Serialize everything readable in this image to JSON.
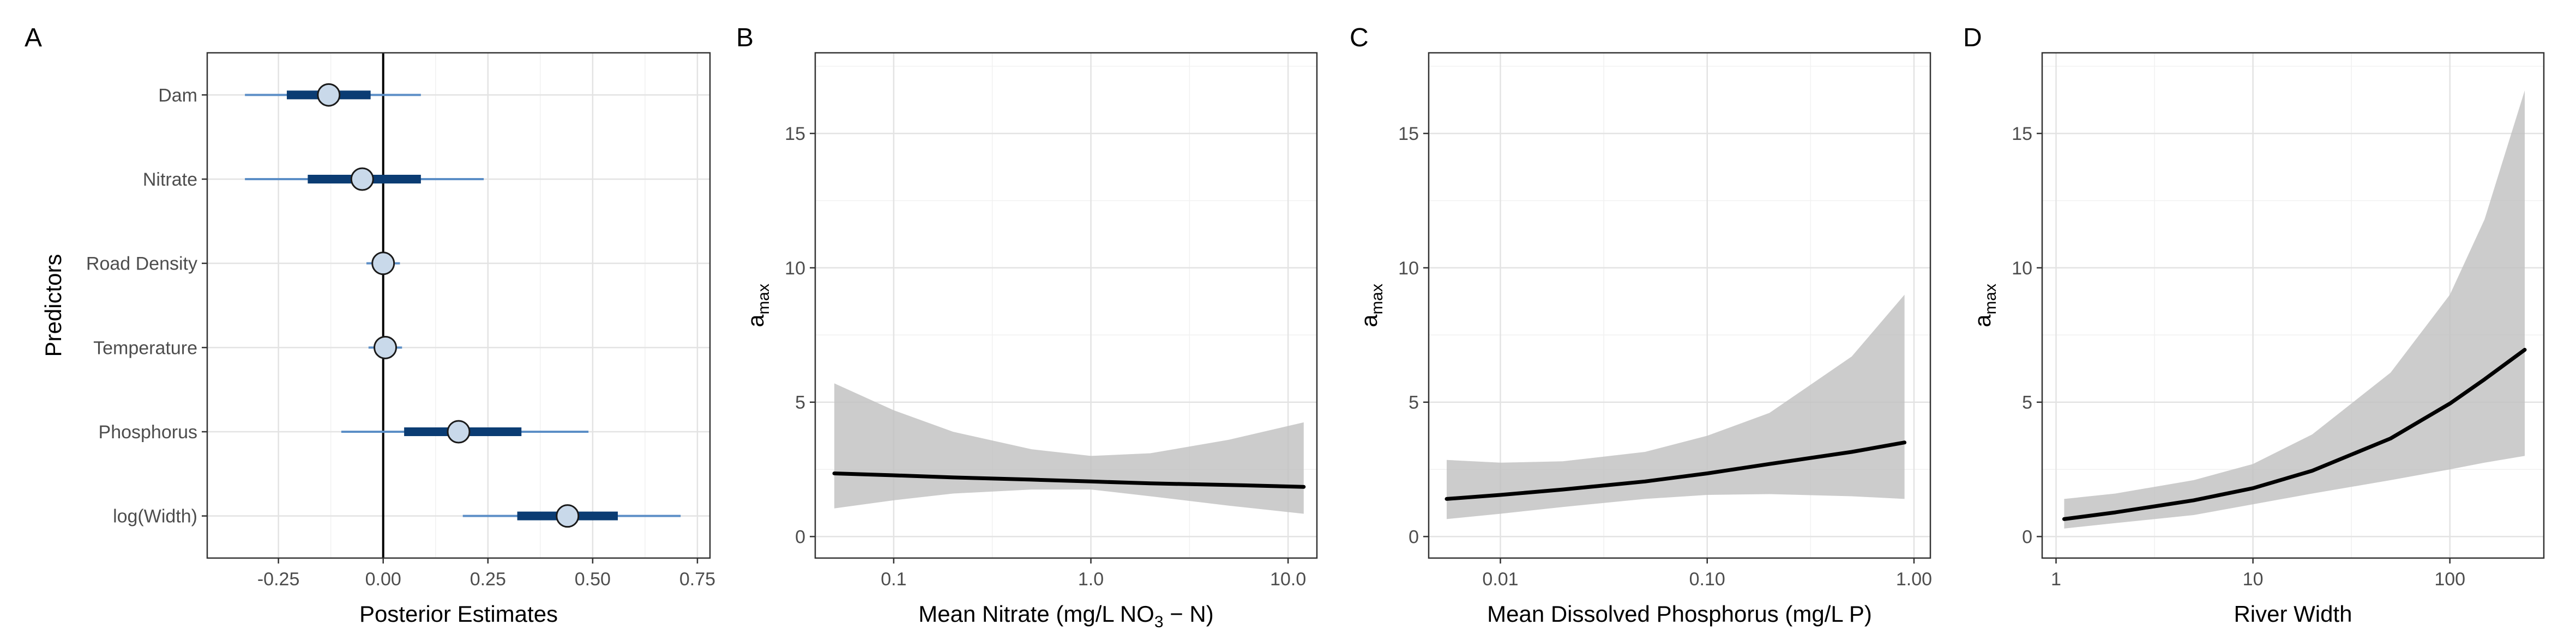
{
  "chart_data": [
    {
      "panel": "A",
      "type": "interval",
      "xlabel": "Posterior Estimates",
      "ylabel": "Predictors",
      "xlim": [
        -0.42,
        0.78
      ],
      "xticks": [
        -0.25,
        0,
        0.25,
        0.5,
        0.75
      ],
      "xtick_labels": [
        "-0.25",
        "0.00",
        "0.25",
        "0.50",
        "0.75"
      ],
      "reference_line": 0,
      "grid": true,
      "colors": {
        "thick": "#0b3c73",
        "thin": "#5b8ec6",
        "point_fill": "#c9d9ea"
      },
      "categories": [
        "Dam",
        "Nitrate",
        "Road Density",
        "Temperature",
        "Phosphorus",
        "log(Width)"
      ],
      "estimates": [
        {
          "name": "Dam",
          "mean": -0.13,
          "inner": [
            -0.23,
            -0.03
          ],
          "outer": [
            -0.33,
            0.09
          ]
        },
        {
          "name": "Nitrate",
          "mean": -0.05,
          "inner": [
            -0.18,
            0.09
          ],
          "outer": [
            -0.33,
            0.24
          ]
        },
        {
          "name": "Road Density",
          "mean": 0.0,
          "inner": [
            -0.015,
            0.015
          ],
          "outer": [
            -0.04,
            0.04
          ]
        },
        {
          "name": "Temperature",
          "mean": 0.005,
          "inner": [
            -0.01,
            0.02
          ],
          "outer": [
            -0.035,
            0.045
          ]
        },
        {
          "name": "Phosphorus",
          "mean": 0.18,
          "inner": [
            0.05,
            0.33
          ],
          "outer": [
            -0.1,
            0.49
          ]
        },
        {
          "name": "log(Width)",
          "mean": 0.44,
          "inner": [
            0.32,
            0.56
          ],
          "outer": [
            0.19,
            0.71
          ]
        }
      ]
    },
    {
      "panel": "B",
      "type": "line",
      "xlabel": {
        "main": "Mean Nitrate (mg/L NO",
        "sub": "3",
        "tail": " − N)"
      },
      "ylabel": {
        "main": "a",
        "sub": "max"
      },
      "xscale": "log",
      "xlim": [
        0.04,
        14
      ],
      "ylim": [
        -0.8,
        18
      ],
      "xticks": [
        0.1,
        1,
        10
      ],
      "xtick_labels": [
        "0.1",
        "1.0",
        "10.0"
      ],
      "yticks": [
        0,
        5,
        10,
        15
      ],
      "ytick_labels": [
        "0",
        "5",
        "10",
        "15"
      ],
      "grid": true,
      "x": [
        0.05,
        0.1,
        0.2,
        0.5,
        1.0,
        2.0,
        5.0,
        12.0
      ],
      "y": [
        2.35,
        2.28,
        2.2,
        2.12,
        2.05,
        1.98,
        1.92,
        1.85
      ],
      "ci_lower": [
        1.05,
        1.35,
        1.6,
        1.75,
        1.75,
        1.5,
        1.15,
        0.85
      ],
      "ci_upper": [
        5.7,
        4.7,
        3.9,
        3.25,
        3.0,
        3.1,
        3.6,
        4.25
      ]
    },
    {
      "panel": "C",
      "type": "line",
      "xlabel": {
        "main": "Mean Dissolved Phosphorus (mg/L P)",
        "sub": "",
        "tail": ""
      },
      "ylabel": {
        "main": "a",
        "sub": "max"
      },
      "xscale": "log",
      "xlim": [
        0.0045,
        1.2
      ],
      "ylim": [
        -0.8,
        18
      ],
      "xticks": [
        0.01,
        0.1,
        1
      ],
      "xtick_labels": [
        "0.01",
        "0.10",
        "1.00"
      ],
      "yticks": [
        0,
        5,
        10,
        15
      ],
      "ytick_labels": [
        "0",
        "5",
        "10",
        "15"
      ],
      "grid": true,
      "x": [
        0.0055,
        0.01,
        0.02,
        0.05,
        0.1,
        0.2,
        0.5,
        0.9
      ],
      "y": [
        1.4,
        1.55,
        1.75,
        2.05,
        2.35,
        2.7,
        3.15,
        3.5
      ],
      "ci_lower": [
        0.65,
        0.85,
        1.1,
        1.4,
        1.55,
        1.58,
        1.5,
        1.4
      ],
      "ci_upper": [
        2.85,
        2.75,
        2.8,
        3.15,
        3.75,
        4.6,
        6.7,
        9.0
      ]
    },
    {
      "panel": "D",
      "type": "line",
      "xlabel": {
        "main": "River Width",
        "sub": "",
        "tail": ""
      },
      "ylabel": {
        "main": "a",
        "sub": "max"
      },
      "xscale": "log",
      "xlim": [
        0.85,
        300
      ],
      "ylim": [
        -0.8,
        18
      ],
      "xticks": [
        1,
        10,
        100
      ],
      "xtick_labels": [
        "1",
        "10",
        "100"
      ],
      "yticks": [
        0,
        5,
        10,
        15
      ],
      "ytick_labels": [
        "0",
        "5",
        "10",
        "15"
      ],
      "grid": true,
      "x": [
        1.1,
        2,
        5,
        10,
        20,
        50,
        100,
        150,
        240
      ],
      "y": [
        0.65,
        0.9,
        1.35,
        1.8,
        2.45,
        3.65,
        4.95,
        5.85,
        6.95
      ],
      "ci_lower": [
        0.3,
        0.5,
        0.8,
        1.2,
        1.6,
        2.1,
        2.5,
        2.75,
        3.0
      ],
      "ci_upper": [
        1.4,
        1.6,
        2.1,
        2.7,
        3.8,
        6.1,
        9.0,
        11.8,
        16.6
      ]
    }
  ]
}
